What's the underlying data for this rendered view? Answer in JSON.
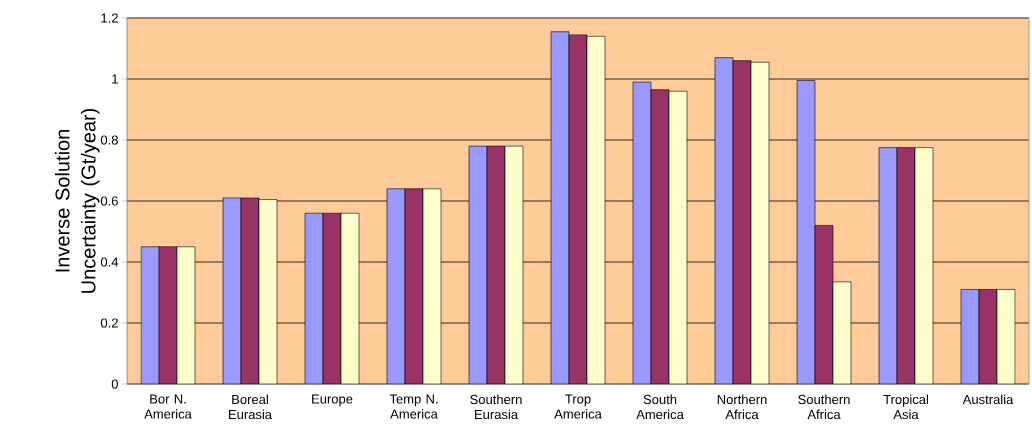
{
  "chart_data": {
    "type": "bar",
    "ylabel": "Inverse Solution Uncertainty (Gt/year)",
    "categories": [
      "Bor N. America",
      "Boreal Eurasia",
      "Europe",
      "Temp N. America",
      "Southern Eurasia",
      "Trop America",
      "South America",
      "Northern Africa",
      "Southern Africa",
      "Tropical Asia",
      "Australia"
    ],
    "series": [
      {
        "color": "#9999ff",
        "values": [
          0.45,
          0.61,
          0.56,
          0.64,
          0.78,
          1.155,
          0.99,
          1.07,
          0.995,
          0.775,
          0.31
        ]
      },
      {
        "color": "#993366",
        "values": [
          0.45,
          0.61,
          0.56,
          0.64,
          0.78,
          1.145,
          0.965,
          1.06,
          0.52,
          0.775,
          0.31
        ]
      },
      {
        "color": "#ffffcc",
        "values": [
          0.45,
          0.605,
          0.56,
          0.64,
          0.78,
          1.14,
          0.96,
          1.055,
          0.335,
          0.775,
          0.31
        ]
      }
    ],
    "ylim": [
      0,
      1.2
    ],
    "yticks": [
      0,
      0.2,
      0.4,
      0.6,
      0.8,
      1,
      1.2
    ],
    "grid": "y"
  }
}
